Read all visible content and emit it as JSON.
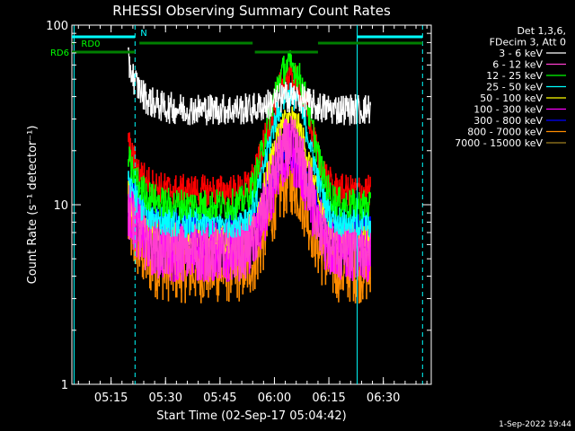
{
  "chart_data": {
    "type": "line",
    "title": "RHESSI Observing Summary Count Rates",
    "xlabel": "Start Time (02-Sep-17 05:04:42)",
    "ylabel": "Count Rate (s⁻¹ detector⁻¹)",
    "yscale": "log",
    "ylim": [
      1,
      100
    ],
    "xlim_minutes": [
      5.07,
      6.72
    ],
    "x_ticks": [
      {
        "label": "05:15",
        "t": 5.25
      },
      {
        "label": "05:30",
        "t": 5.5
      },
      {
        "label": "05:45",
        "t": 5.75
      },
      {
        "label": "06:00",
        "t": 6.0
      },
      {
        "label": "06:15",
        "t": 6.25
      },
      {
        "label": "06:30",
        "t": 6.5
      }
    ],
    "y_ticks": [
      {
        "label": "1",
        "v": 1
      },
      {
        "label": "10",
        "v": 10
      },
      {
        "label": "100",
        "v": 100
      }
    ],
    "legend_header": [
      "Det 1,3,6,",
      "FDecim 3, Att 0"
    ],
    "series": [
      {
        "name": "3 - 6 keV",
        "color": "#ffffff",
        "base": 34,
        "peak": 40
      },
      {
        "name": "6 - 12 keV",
        "color": "#ff3fd0",
        "base": 5.5,
        "peak": 21
      },
      {
        "name": "12 - 25 keV",
        "color": "#00ff00",
        "base": 10,
        "peak": 60
      },
      {
        "name": "25 - 50 keV",
        "color": "#00ffff",
        "base": 8,
        "peak": 42
      },
      {
        "name": "50 - 100 keV",
        "color": "#ffff00",
        "base": 6.5,
        "peak": 30
      },
      {
        "name": "100 - 300 keV",
        "color": "#ff00ff",
        "base": 5.5,
        "peak": 19
      },
      {
        "name": "300 - 800 keV",
        "color": "#0000ff",
        "base": 7.5,
        "peak": 19
      },
      {
        "name": "800 - 7000 keV",
        "color": "#ff8c00",
        "base": 4.2,
        "peak": 13
      },
      {
        "name": "7000 - 15000 keV",
        "color": "#a08020",
        "base": 1,
        "peak": 1
      }
    ],
    "red_series": {
      "name": "",
      "color": "#ff0000",
      "base": 12,
      "peak": 52
    },
    "bars": [
      {
        "label": "N",
        "color": "#00ffff",
        "segments": [
          [
            5.07,
            5.36
          ],
          [
            6.38,
            6.68
          ]
        ]
      },
      {
        "label": "RD0",
        "color": "#007f00",
        "segments": [
          [
            5.07,
            5.08
          ],
          [
            5.38,
            5.9
          ],
          [
            6.2,
            6.68
          ]
        ]
      },
      {
        "label": "RD6",
        "color": "#007f00",
        "segments": [
          [
            5.07,
            5.36
          ],
          [
            5.91,
            6.2
          ]
        ]
      }
    ],
    "vlines": [
      {
        "t": 5.08,
        "style": "solid"
      },
      {
        "t": 5.36,
        "style": "dashed"
      },
      {
        "t": 6.38,
        "style": "solid"
      },
      {
        "t": 6.68,
        "style": "dashed"
      }
    ],
    "data_start": 5.33,
    "data_end": 6.44,
    "peak_t": 6.07,
    "peak_width": 0.1,
    "grid": false
  },
  "timestamp": "1-Sep-2022 19:44"
}
